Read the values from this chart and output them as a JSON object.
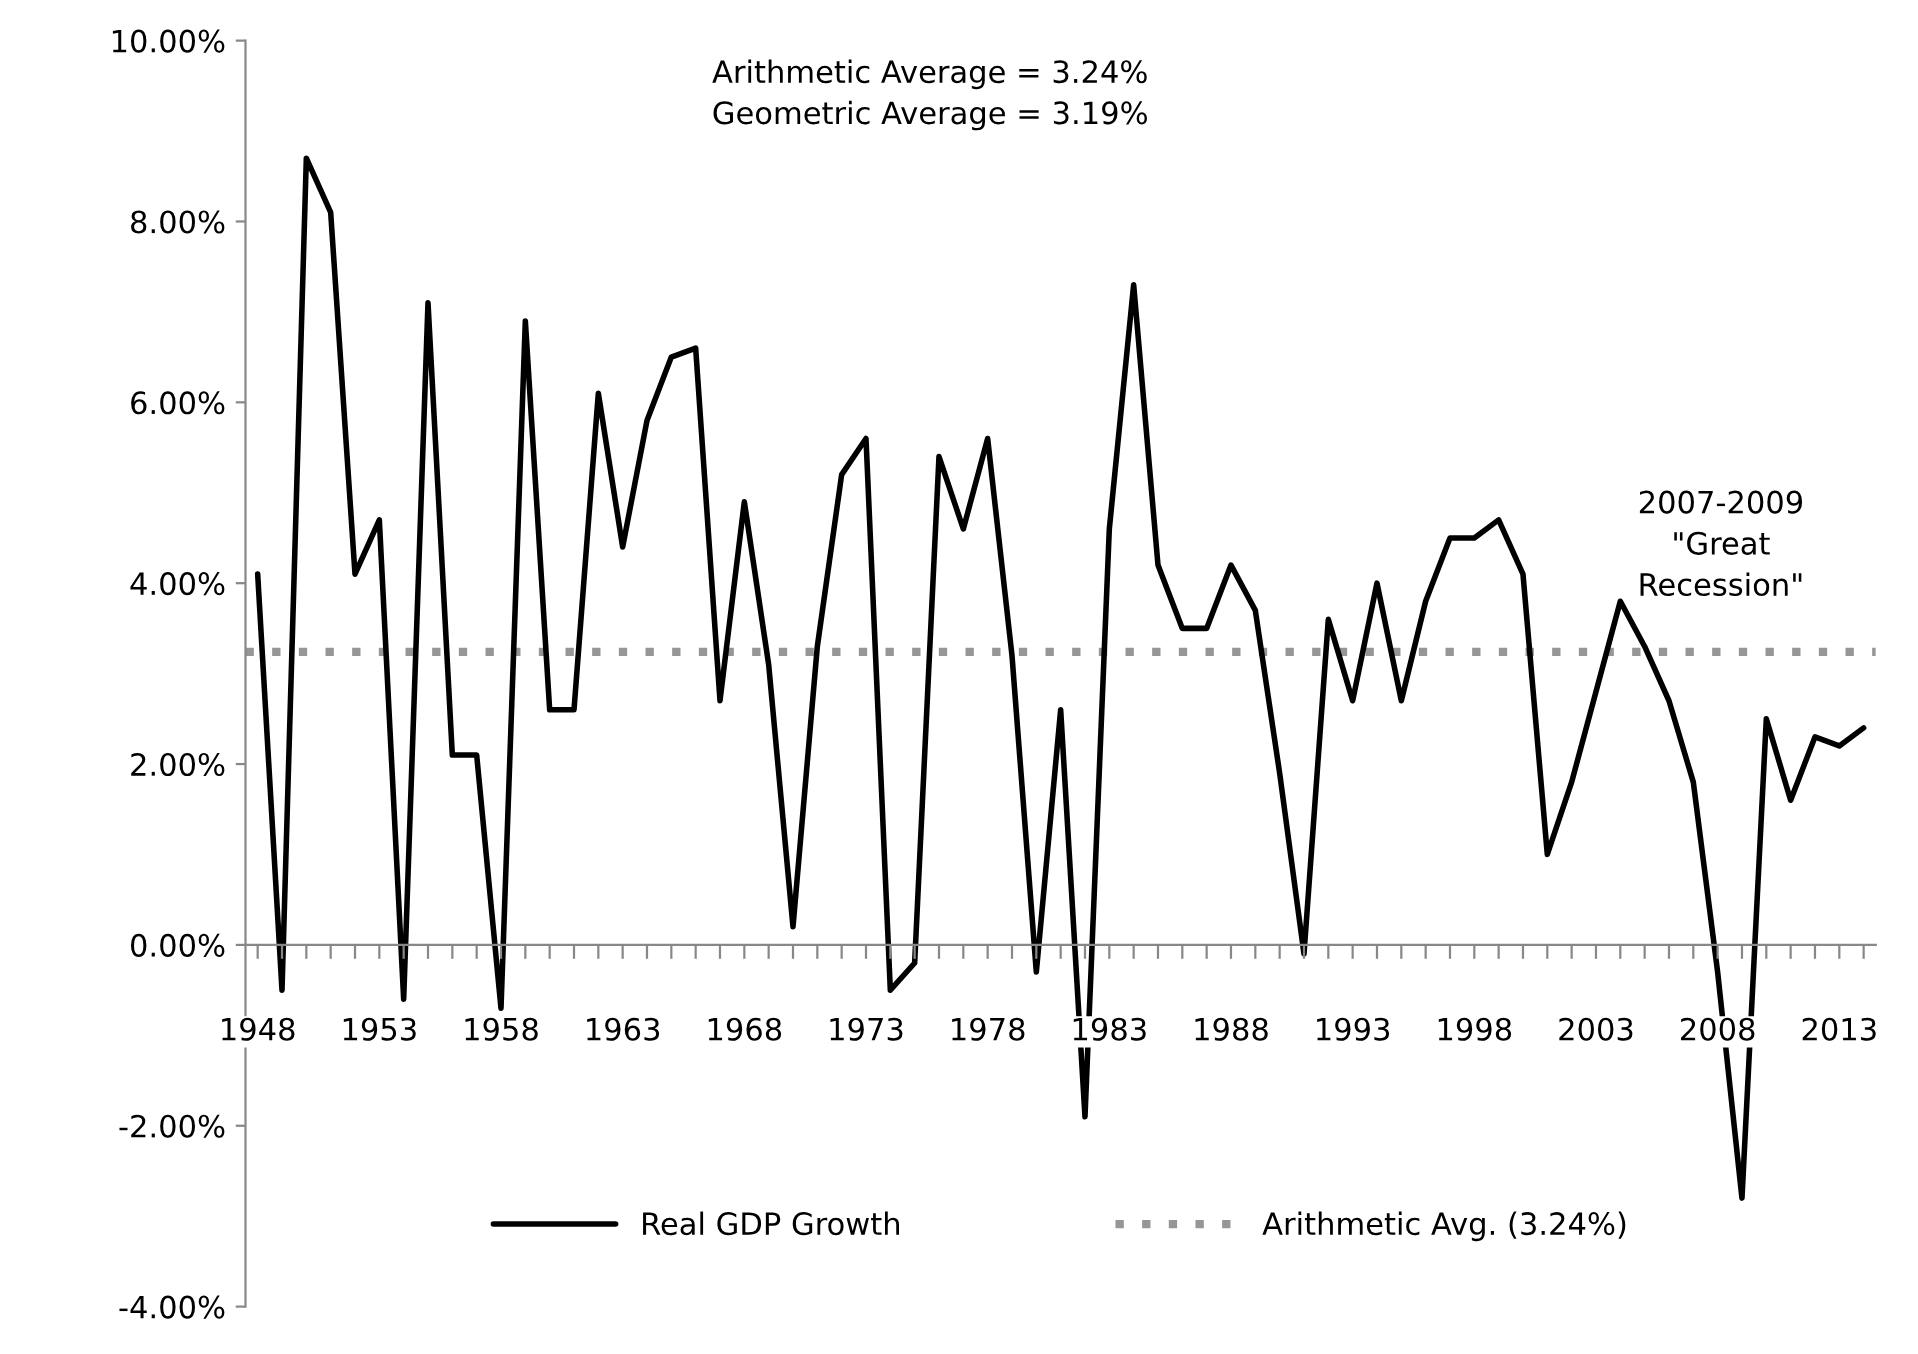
{
  "chart_data": {
    "type": "line",
    "categories": [
      "1948",
      null,
      null,
      null,
      null,
      "1953",
      null,
      null,
      null,
      null,
      "1958",
      null,
      null,
      null,
      null,
      "1963",
      null,
      null,
      null,
      null,
      "1968",
      null,
      null,
      null,
      null,
      "1973",
      null,
      null,
      null,
      null,
      "1978",
      null,
      null,
      null,
      null,
      "1983",
      null,
      null,
      null,
      null,
      "1988",
      null,
      null,
      null,
      null,
      "1993",
      null,
      null,
      null,
      null,
      "1998",
      null,
      null,
      null,
      null,
      "2003",
      null,
      null,
      null,
      null,
      "2008",
      null,
      null,
      null,
      null,
      "2013",
      null
    ],
    "series": [
      {
        "name": "Real GDP Growth",
        "color": "#000000",
        "values": [
          4.1,
          -0.5,
          8.7,
          8.1,
          4.1,
          4.7,
          -0.6,
          7.1,
          2.1,
          2.1,
          -0.7,
          6.9,
          2.6,
          2.6,
          6.1,
          4.4,
          5.8,
          6.5,
          6.6,
          2.7,
          4.9,
          3.1,
          0.2,
          3.3,
          5.2,
          5.6,
          -0.5,
          -0.2,
          5.4,
          4.6,
          5.6,
          3.2,
          -0.3,
          2.6,
          -1.9,
          4.6,
          7.3,
          4.2,
          3.5,
          3.5,
          4.2,
          3.7,
          1.9,
          -0.1,
          3.6,
          2.7,
          4.0,
          2.7,
          3.8,
          4.5,
          4.5,
          4.7,
          4.1,
          1.0,
          1.8,
          2.8,
          3.8,
          3.3,
          2.7,
          1.8,
          -0.3,
          -2.8,
          2.5,
          1.6,
          2.3,
          2.2,
          2.4
        ]
      }
    ],
    "ylim": [
      -4,
      10
    ],
    "yticks": [
      {
        "value": -4,
        "label": "-4.00%"
      },
      {
        "value": -2,
        "label": "-2.00%"
      },
      {
        "value": 0,
        "label": "0.00%"
      },
      {
        "value": 2,
        "label": "2.00%"
      },
      {
        "value": 4,
        "label": "4.00%"
      },
      {
        "value": 6,
        "label": "6.00%"
      },
      {
        "value": 8,
        "label": "8.00%"
      },
      {
        "value": 10,
        "label": "10.00%"
      }
    ],
    "ref_lines": [
      {
        "axis": "y",
        "value": 3.24,
        "label": "Arithmetic Avg. (3.24%)",
        "color": "#969696",
        "line_style": "dotted"
      }
    ],
    "annotations": [
      "Arithmetic Average = 3.24%\nGeometric Average = 3.19%",
      "2007-2009\n\"Great\nRecession\""
    ],
    "legend": "bottom",
    "grid": false,
    "marker": "none",
    "line_style": "solid"
  }
}
